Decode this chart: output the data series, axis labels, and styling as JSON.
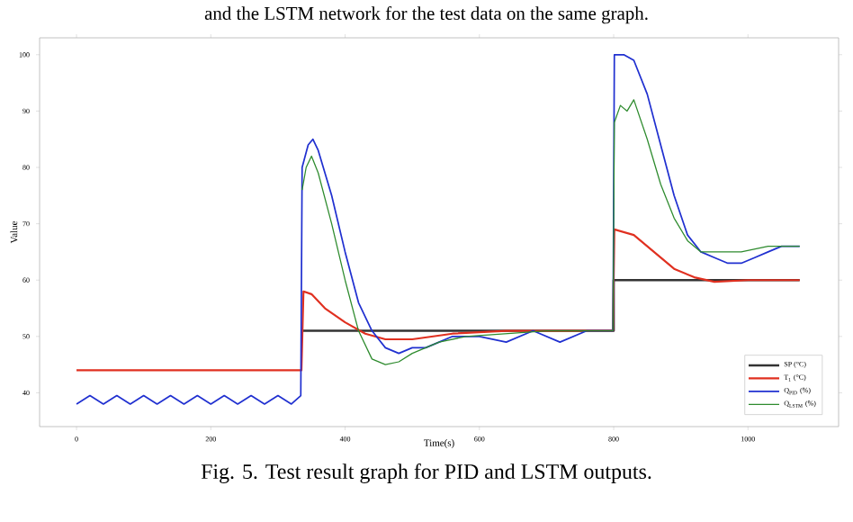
{
  "chart_data": {
    "type": "line",
    "xlabel": "Time(s)",
    "ylabel": "Value",
    "xlim": [
      -55,
      1135
    ],
    "ylim": [
      34,
      103
    ],
    "xticks": [
      0,
      200,
      400,
      600,
      800,
      1000
    ],
    "yticks": [
      40,
      50,
      60,
      70,
      80,
      90,
      100
    ],
    "grid": false,
    "legend": "bottom right",
    "annotations": [
      "and the LSTM network for the test data on the same graph.",
      "Fig. 5. Test result graph for PID and LSTM outputs."
    ],
    "series": [
      {
        "name": "SP (°C)",
        "color": "#333333",
        "x": [
          335,
          800,
          800,
          1077
        ],
        "values": [
          51,
          51,
          60,
          60
        ]
      },
      {
        "name": "T$_{1}$ (°C)",
        "color": "#e03020",
        "x": [
          0,
          335,
          338,
          350,
          370,
          400,
          430,
          460,
          500,
          560,
          640,
          799,
          801,
          830,
          860,
          890,
          920,
          950,
          1000,
          1077
        ],
        "values": [
          44,
          44,
          58,
          57.5,
          55,
          52.5,
          50.5,
          49.5,
          49.5,
          50.5,
          51,
          51,
          69,
          68,
          65,
          62,
          60.5,
          59.7,
          60,
          60
        ]
      },
      {
        "name": "Q$_{PID}$ (%)",
        "color": "#2030d0",
        "x": [
          0,
          20,
          40,
          60,
          80,
          100,
          120,
          140,
          160,
          180,
          200,
          220,
          240,
          260,
          280,
          300,
          320,
          334,
          336,
          345,
          352,
          360,
          380,
          400,
          420,
          440,
          460,
          480,
          500,
          520,
          540,
          560,
          600,
          640,
          680,
          720,
          760,
          799,
          801,
          815,
          830,
          850,
          870,
          890,
          910,
          930,
          950,
          970,
          990,
          1010,
          1030,
          1050,
          1077
        ],
        "values": [
          38,
          39.5,
          38,
          39.5,
          38,
          39.5,
          38,
          39.5,
          38,
          39.5,
          38,
          39.5,
          38,
          39.5,
          38,
          39.5,
          38,
          39.5,
          80,
          84,
          85,
          83,
          75,
          65,
          56,
          51,
          48,
          47,
          48,
          48,
          49,
          50,
          50,
          49,
          51,
          49,
          51,
          51,
          100,
          100,
          99,
          93,
          84,
          75,
          68,
          65,
          64,
          63,
          63,
          64,
          65,
          66,
          66
        ]
      },
      {
        "name": "Q$_{LSTM}$ (%)",
        "color": "#2e8b2e",
        "x": [
          336,
          342,
          350,
          360,
          380,
          400,
          420,
          440,
          460,
          480,
          500,
          540,
          580,
          700,
          799,
          801,
          810,
          820,
          830,
          850,
          870,
          890,
          910,
          930,
          950,
          990,
          1030,
          1077
        ],
        "values": [
          76,
          80,
          82,
          79,
          70,
          60,
          51,
          46,
          45,
          45.5,
          47,
          49,
          50,
          51,
          51,
          88,
          91,
          90,
          92,
          85,
          77,
          71,
          67,
          65,
          65,
          65,
          66,
          66
        ]
      }
    ]
  }
}
